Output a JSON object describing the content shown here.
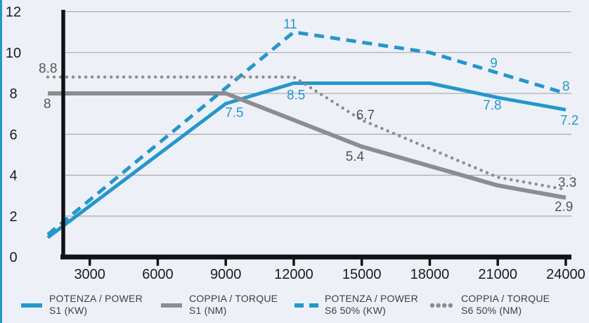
{
  "frame": {
    "background": "#edf1f7",
    "left_border_color": "#2697c9"
  },
  "chart_data": {
    "type": "line",
    "grid": "horizontal",
    "legend_position": "bottom",
    "axis_color": "#121214",
    "grid_color": "#a8a8ab",
    "tick_label_color": "#1b1b20",
    "xlim": [
      1150,
      24000
    ],
    "ylim": [
      0,
      12
    ],
    "x_ticks": [
      3000,
      6000,
      9000,
      12000,
      15000,
      18000,
      21000,
      24000
    ],
    "y_ticks": [
      0,
      2,
      4,
      6,
      8,
      10,
      12
    ],
    "series": [
      {
        "id": "power-s1",
        "name": "POTENZA / POWER S1 (KW)",
        "legend": [
          "POTENZA / POWER",
          "S1 (KW)"
        ],
        "style": "solid",
        "color": "#2697c9",
        "label_color": "#2697c9",
        "width": 5,
        "points": [
          [
            1150,
            0.95
          ],
          [
            9000,
            7.5
          ],
          [
            12000,
            8.5
          ],
          [
            18000,
            8.5
          ],
          [
            21000,
            7.8
          ],
          [
            24000,
            7.2
          ]
        ],
        "labels": [
          {
            "text": "7.5",
            "x": 9000,
            "y": 7.5,
            "dx": -1,
            "dy": 19
          },
          {
            "text": "8.5",
            "x": 12000,
            "y": 8.5,
            "dx": -10,
            "dy": 23
          },
          {
            "text": "7.8",
            "x": 21000,
            "y": 7.8,
            "dx": -21,
            "dy": 17
          },
          {
            "text": "7.2",
            "x": 24000,
            "y": 7.2,
            "dx": -8,
            "dy": 21
          }
        ]
      },
      {
        "id": "torque-s1",
        "name": "COPPIA / TORQUE S1 (NM)",
        "legend": [
          "COPPIA / TORQUE",
          "S1 (NM)"
        ],
        "style": "solid",
        "color": "#8d8d90",
        "label_color": "#545457",
        "width": 6,
        "points": [
          [
            1150,
            8
          ],
          [
            9000,
            8
          ],
          [
            15000,
            5.4
          ],
          [
            21000,
            3.5
          ],
          [
            24000,
            2.9
          ]
        ],
        "labels": [
          {
            "text": "8",
            "x": 1150,
            "y": 8,
            "dx": -6,
            "dy": 21
          },
          {
            "text": "5.4",
            "x": 15000,
            "y": 5.4,
            "dx": -23,
            "dy": 20
          },
          {
            "text": "2.9",
            "x": 24000,
            "y": 2.9,
            "dx": -16,
            "dy": 19
          }
        ]
      },
      {
        "id": "power-s6",
        "name": "POTENZA / POWER S6 50% (KW)",
        "legend": [
          "POTENZA / POWER",
          "S6 50% (KW)"
        ],
        "style": "dashed",
        "color": "#2697c9",
        "label_color": "#2697c9",
        "width": 5,
        "points": [
          [
            1150,
            1.1
          ],
          [
            12000,
            11
          ],
          [
            18000,
            10
          ],
          [
            21000,
            9
          ],
          [
            24000,
            8
          ]
        ],
        "labels": [
          {
            "text": "11",
            "x": 12000,
            "y": 11,
            "dx": -15,
            "dy": -5
          },
          {
            "text": "9",
            "x": 21000,
            "y": 9,
            "dx": -11,
            "dy": -8
          },
          {
            "text": "8",
            "x": 24000,
            "y": 8,
            "dx": -5,
            "dy": -4
          }
        ]
      },
      {
        "id": "torque-s6",
        "name": "COPPIA / TORQUE S6 50% (NM)",
        "legend": [
          "COPPIA / TORQUE",
          "S6 50% (NM)"
        ],
        "style": "dotted",
        "color": "#8d8d90",
        "label_color": "#545457",
        "width": 4.5,
        "points": [
          [
            1150,
            8.8
          ],
          [
            12000,
            8.8
          ],
          [
            15000,
            6.7
          ],
          [
            21000,
            3.9
          ],
          [
            24000,
            3.3
          ]
        ],
        "labels": [
          {
            "text": "8.8",
            "x": 1150,
            "y": 8.8,
            "dx": -13,
            "dy": -6
          },
          {
            "text": "6.7",
            "x": 15000,
            "y": 6.7,
            "dx": -8,
            "dy": -1
          },
          {
            "text": "3.3",
            "x": 24000,
            "y": 3.3,
            "dx": -11,
            "dy": -4
          }
        ]
      }
    ]
  }
}
